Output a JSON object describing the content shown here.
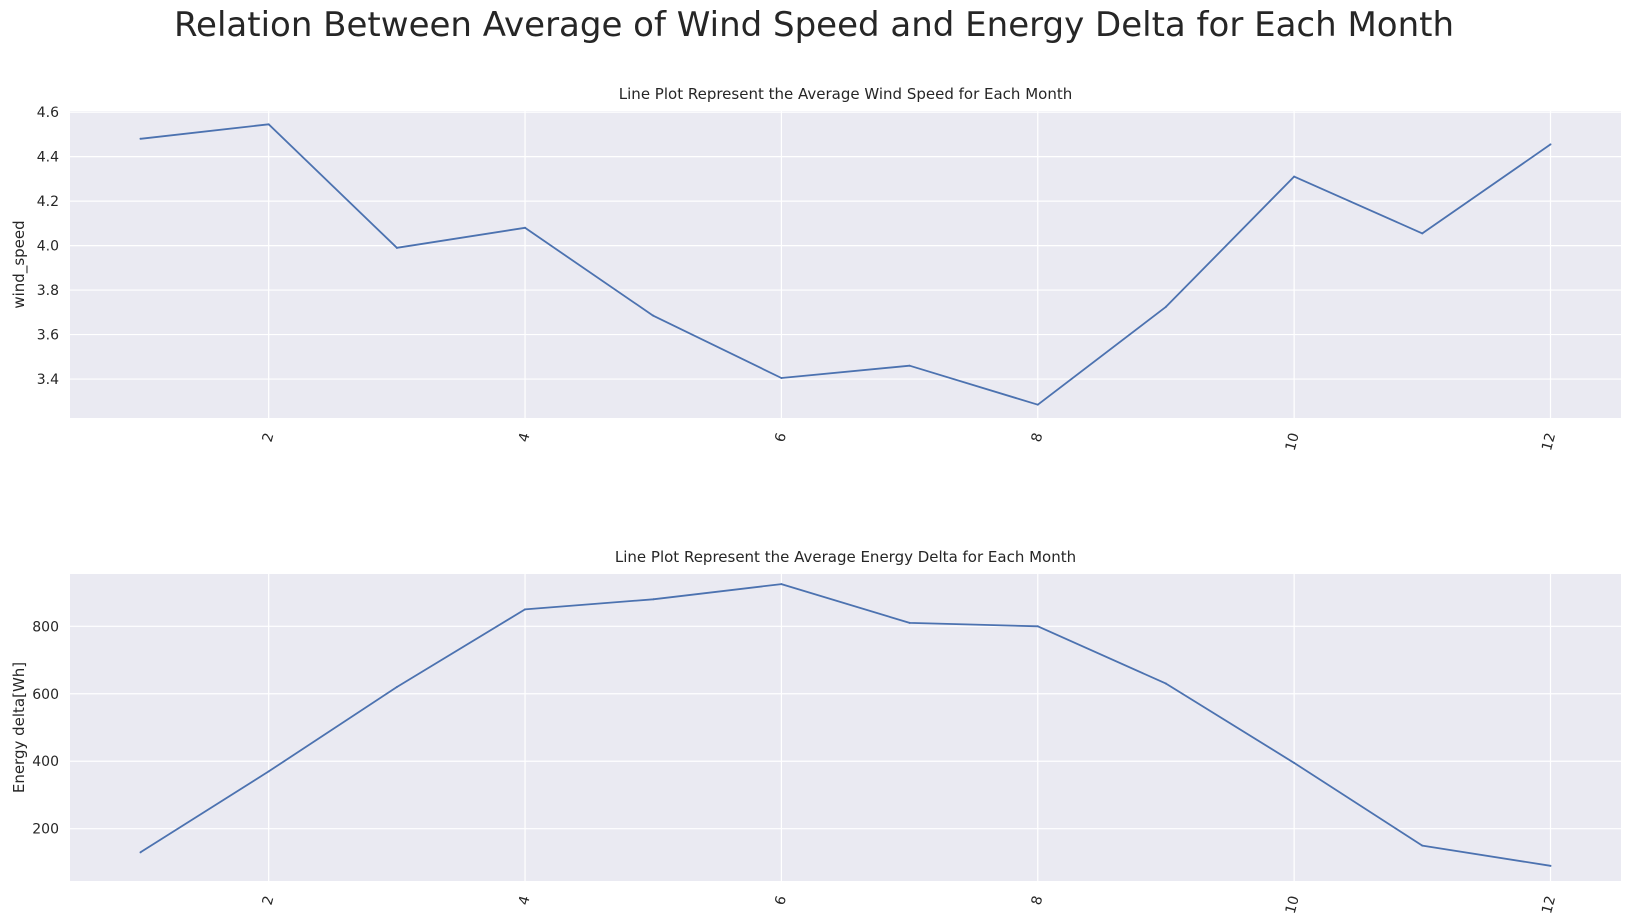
{
  "figure": {
    "title": "Relation Between Average of Wind Speed and Energy Delta for Each Month"
  },
  "style": {
    "background": "#eaeaf2",
    "grid": "#ffffff",
    "line": "#4c72b0",
    "text": "#262626"
  },
  "chart_data": [
    {
      "type": "line",
      "title": "Line Plot Represent the Average Wind Speed for Each Month",
      "xlabel": "",
      "ylabel": "wind_speed",
      "x": [
        1,
        2,
        3,
        4,
        5,
        6,
        7,
        8,
        9,
        10,
        11,
        12
      ],
      "series": [
        {
          "values": [
            4.48,
            4.545,
            3.99,
            4.08,
            3.685,
            3.405,
            3.46,
            3.285,
            3.725,
            4.31,
            4.055,
            4.455
          ]
        }
      ],
      "xlim": [
        0.45,
        12.55
      ],
      "ylim": [
        3.225,
        4.605
      ],
      "xticks": [
        2,
        4,
        6,
        8,
        10,
        12
      ],
      "xtick_labels": [
        "2",
        "4",
        "6",
        "8",
        "10",
        "12"
      ],
      "yticks": [
        3.4,
        3.6,
        3.8,
        4.0,
        4.2,
        4.4,
        4.6
      ],
      "ytick_labels": [
        "3.4",
        "3.6",
        "3.8",
        "4.0",
        "4.2",
        "4.4",
        "4.6"
      ],
      "grid": true
    },
    {
      "type": "line",
      "title": "Line Plot Represent the Average Energy Delta for Each Month",
      "xlabel": "",
      "ylabel": "Energy delta[Wh]",
      "x": [
        1,
        2,
        3,
        4,
        5,
        6,
        7,
        8,
        9,
        10,
        11,
        12
      ],
      "series": [
        {
          "values": [
            130,
            370,
            620,
            850,
            880,
            925,
            810,
            800,
            630,
            395,
            150,
            90
          ]
        }
      ],
      "xlim": [
        0.45,
        12.55
      ],
      "ylim": [
        45,
        955
      ],
      "xticks": [
        2,
        4,
        6,
        8,
        10,
        12
      ],
      "xtick_labels": [
        "2",
        "4",
        "6",
        "8",
        "10",
        "12"
      ],
      "yticks": [
        200,
        400,
        600,
        800
      ],
      "ytick_labels": [
        "200",
        "400",
        "600",
        "800"
      ],
      "grid": true
    }
  ]
}
